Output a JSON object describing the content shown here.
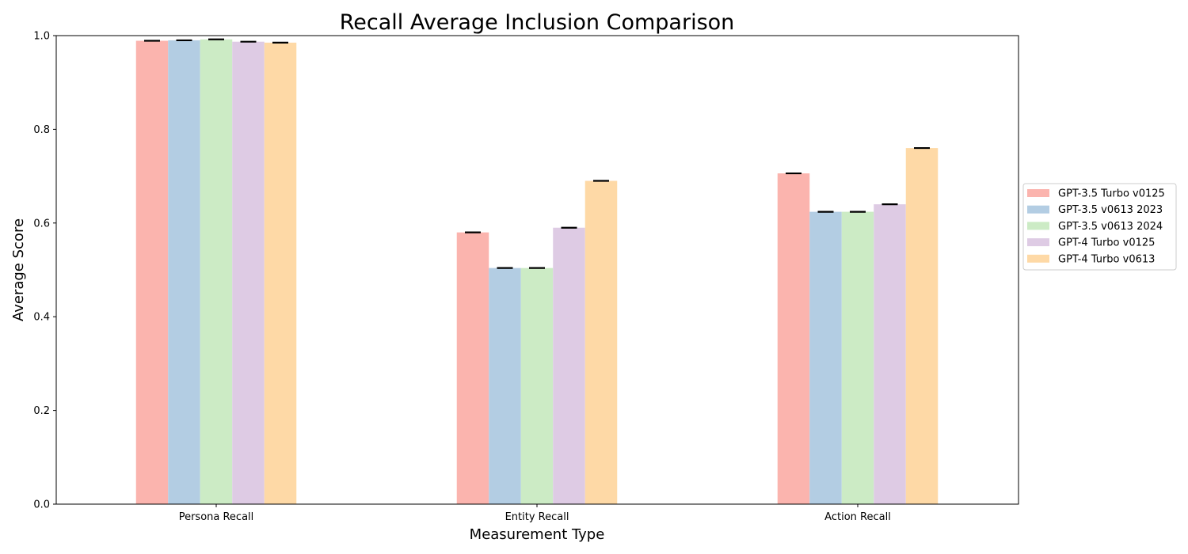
{
  "chart_data": {
    "type": "bar",
    "title": "Recall Average Inclusion Comparison",
    "xlabel": "Measurement Type",
    "ylabel": "Average Score",
    "ylim": [
      0,
      1.0
    ],
    "yticks": [
      "0.0",
      "0.2",
      "0.4",
      "0.6",
      "0.8",
      "1.0"
    ],
    "categories": [
      "Persona Recall",
      "Entity Recall",
      "Action Recall"
    ],
    "grid": false,
    "legend_position": "right",
    "error_bars": true,
    "series": [
      {
        "name": "GPT-3.5 Turbo v0125",
        "color": "#fbb4ae",
        "values": [
          0.989,
          0.58,
          0.706
        ]
      },
      {
        "name": "GPT-3.5 v0613 2023",
        "color": "#b3cde3",
        "values": [
          0.99,
          0.504,
          0.624
        ]
      },
      {
        "name": "GPT-3.5 v0613 2024",
        "color": "#ccebc5",
        "values": [
          0.992,
          0.504,
          0.624
        ]
      },
      {
        "name": "GPT-4 Turbo v0125",
        "color": "#decbe4",
        "values": [
          0.987,
          0.59,
          0.64
        ]
      },
      {
        "name": "GPT-4 Turbo v0613",
        "color": "#fed9a6",
        "values": [
          0.985,
          0.69,
          0.76
        ]
      }
    ]
  }
}
